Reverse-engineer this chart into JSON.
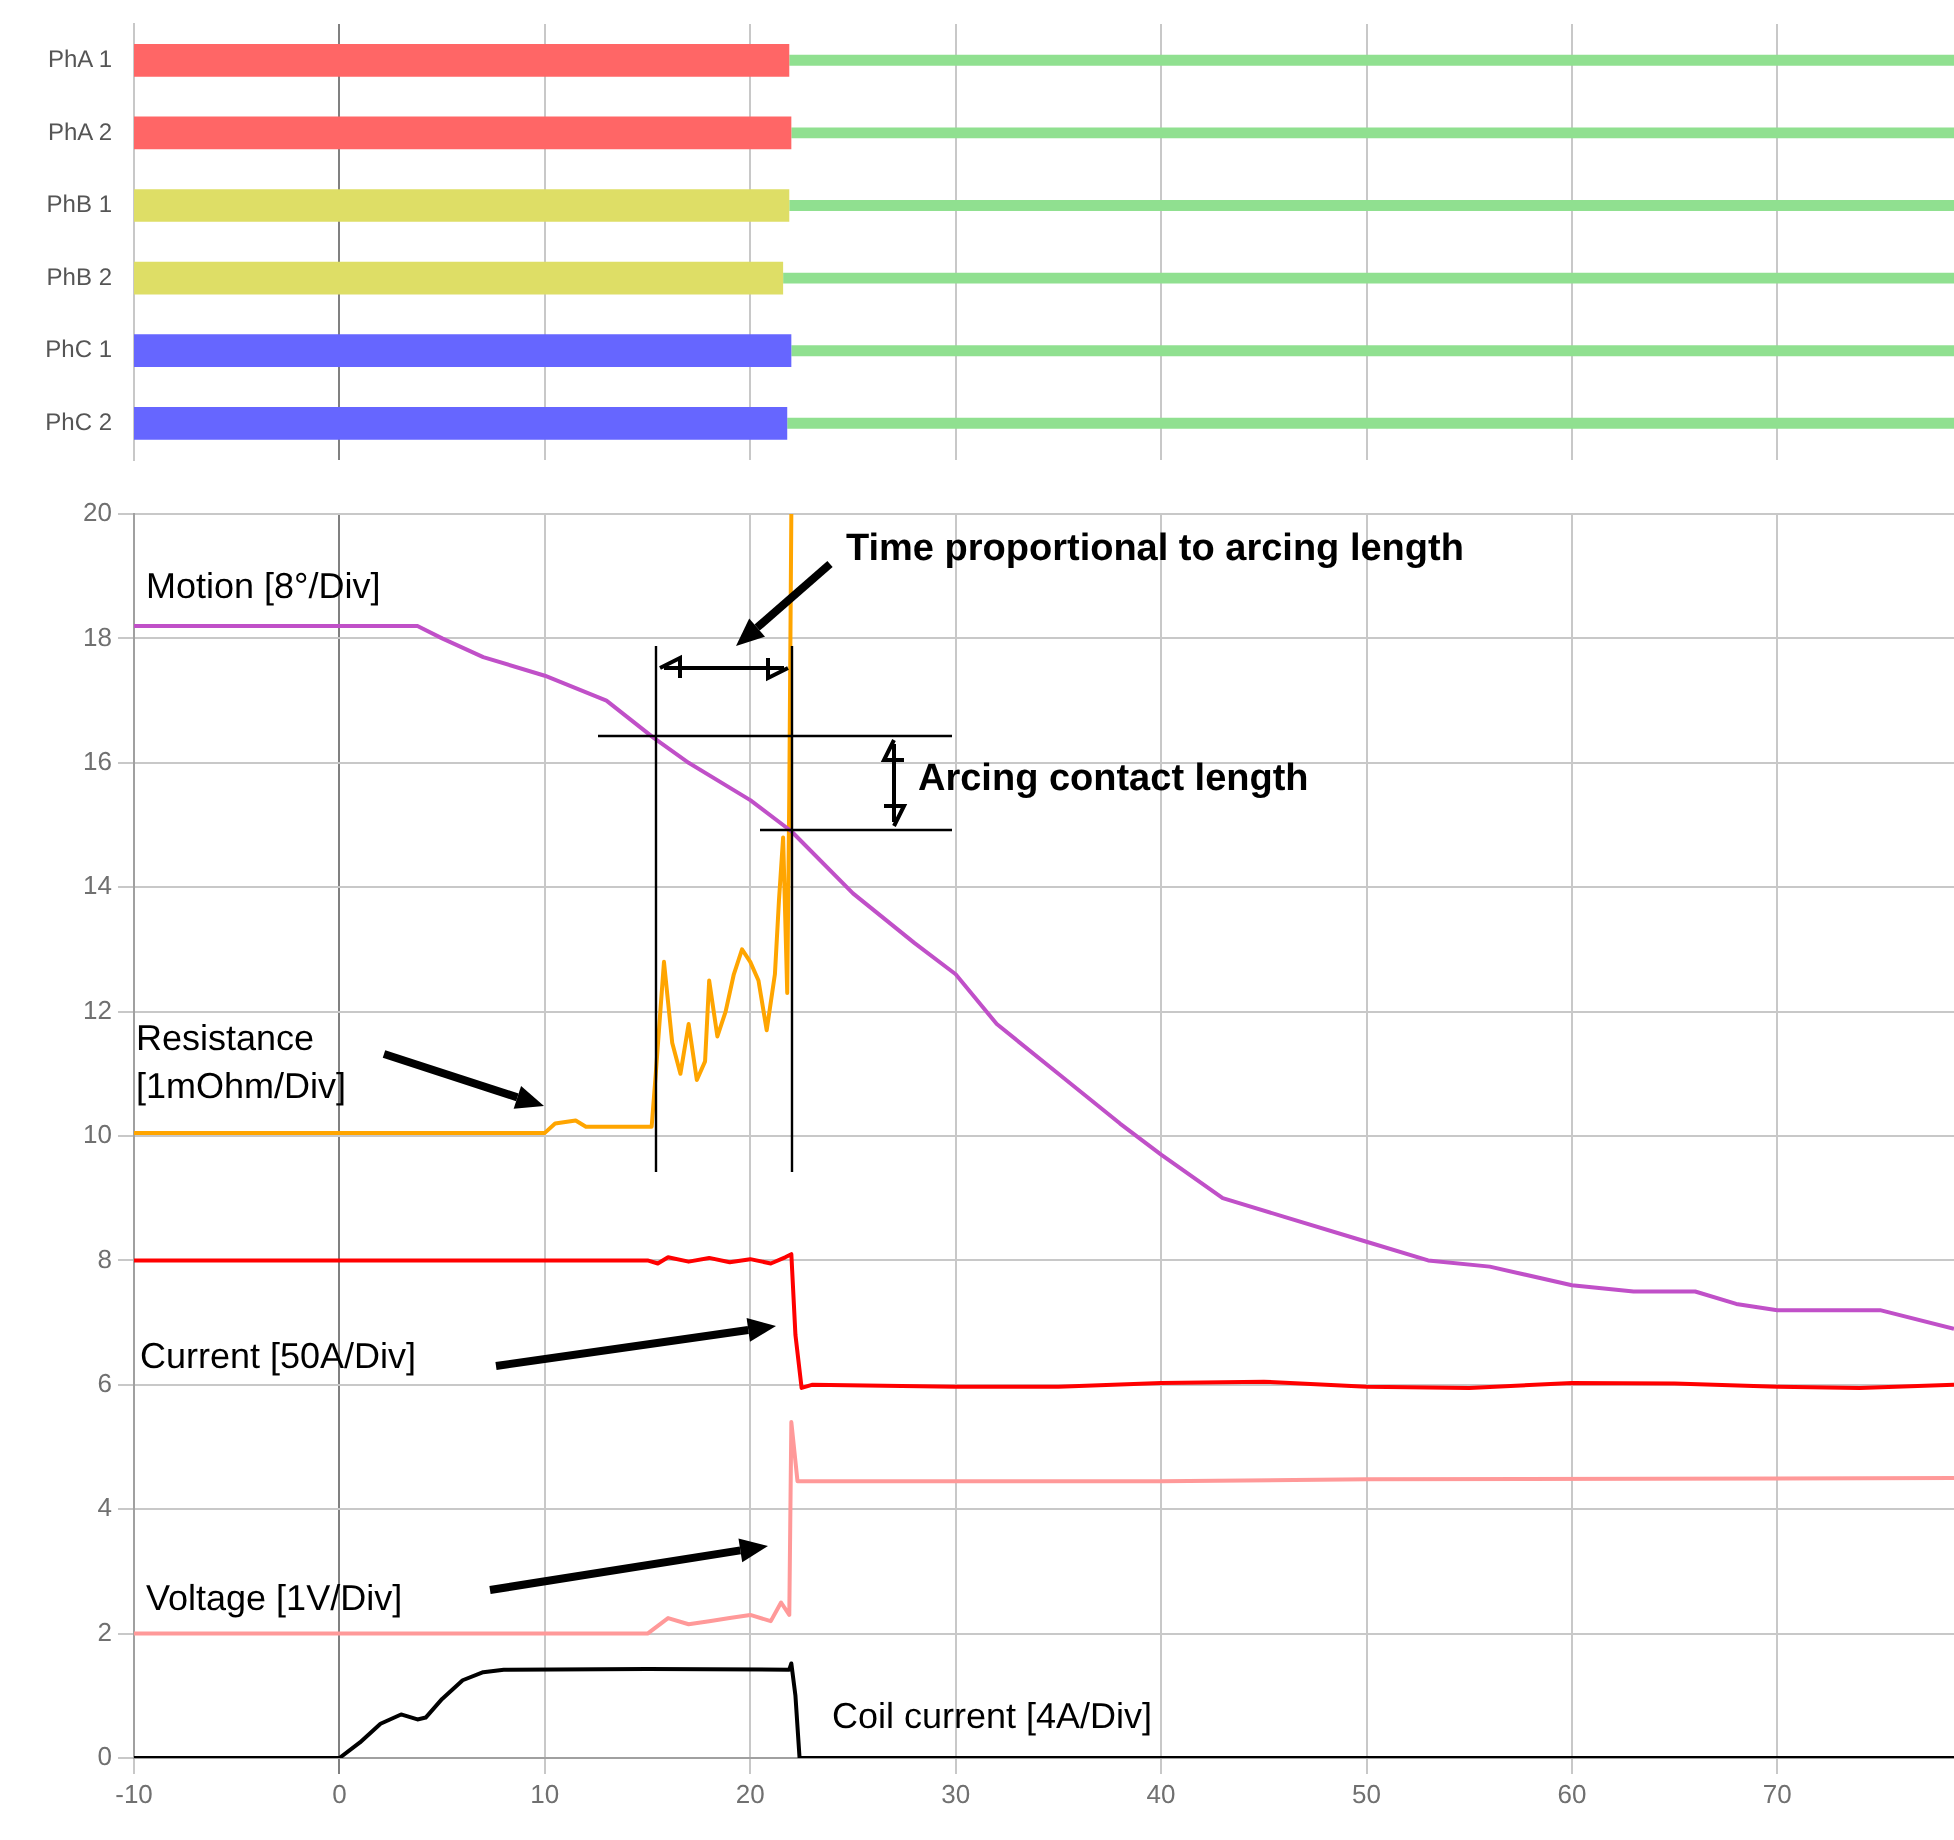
{
  "chart_data": [
    {
      "type": "bar",
      "orientation": "horizontal",
      "categories": [
        "PhA 1",
        "PhA 2",
        "PhB 1",
        "PhB 2",
        "PhC 1",
        "PhC 2"
      ],
      "series": [
        {
          "colors": [
            "#ff6666",
            "#ff6666",
            "#dede66",
            "#dede66",
            "#6666ff",
            "#6666ff"
          ],
          "base": [
            -10,
            -10,
            -10,
            -10,
            -10,
            -10
          ],
          "values": [
            31.9,
            32.0,
            31.9,
            31.6,
            32.0,
            31.8
          ]
        },
        {
          "color": "#90e090",
          "base": [
            21.9,
            22.0,
            21.9,
            21.6,
            22.0,
            21.8
          ],
          "values": [
            56.7,
            56.6,
            56.7,
            57.0,
            56.6,
            56.8
          ]
        }
      ],
      "xlim": [
        -10,
        78.6
      ],
      "xticks": [
        -10,
        0,
        10,
        20,
        30,
        40,
        50,
        60,
        70
      ],
      "grid": "x",
      "tick_labels": "y"
    },
    {
      "type": "line",
      "marker": "none",
      "grid": true,
      "xlim": [
        -10,
        78.6
      ],
      "xticks": [
        -10,
        0,
        10,
        20,
        30,
        40,
        50,
        60,
        70
      ],
      "ylim": [
        0,
        20
      ],
      "yticks": [
        0,
        2,
        4,
        6,
        8,
        10,
        12,
        14,
        16,
        18,
        20
      ],
      "series": [
        {
          "color": "#c050c8",
          "x": [
            -10,
            0,
            3.8,
            5,
            7,
            10,
            13,
            15.3,
            17,
            20,
            22,
            25,
            28,
            30,
            32,
            35,
            38,
            40,
            43,
            46,
            50,
            53,
            56,
            60,
            63,
            66,
            68,
            70,
            73,
            75,
            78.6
          ],
          "values": [
            18.2,
            18.2,
            18.2,
            18.0,
            17.7,
            17.4,
            17.0,
            16.4,
            16.0,
            15.4,
            14.9,
            13.9,
            13.1,
            12.6,
            11.8,
            11.0,
            10.2,
            9.7,
            9.0,
            8.7,
            8.3,
            8.0,
            7.9,
            7.6,
            7.5,
            7.5,
            7.3,
            7.2,
            7.2,
            7.2,
            6.9
          ]
        },
        {
          "color": "#ffa500",
          "x": [
            -10,
            10,
            10.5,
            11.5,
            12,
            15.2,
            15.4,
            15.8,
            16.2,
            16.6,
            17,
            17.4,
            17.8,
            18,
            18.4,
            18.8,
            19.2,
            19.6,
            20,
            20.4,
            20.8,
            21.2,
            21.4,
            21.6,
            21.8,
            21.9,
            22
          ],
          "values": [
            10.05,
            10.05,
            10.2,
            10.25,
            10.15,
            10.15,
            11.0,
            12.8,
            11.5,
            11.0,
            11.8,
            10.9,
            11.2,
            12.5,
            11.6,
            12.0,
            12.6,
            13.0,
            12.8,
            12.5,
            11.7,
            12.6,
            13.8,
            14.8,
            12.3,
            15.5,
            20
          ]
        },
        {
          "color": "#ff0000",
          "x": [
            -10,
            15,
            15.5,
            16,
            17,
            18,
            19,
            20,
            21,
            21.7,
            22,
            22.2,
            22.5,
            23,
            30,
            35,
            40,
            45,
            50,
            55,
            60,
            65,
            70,
            74,
            78.6
          ],
          "values": [
            8,
            8,
            7.95,
            8.05,
            7.98,
            8.04,
            7.97,
            8.02,
            7.95,
            8.05,
            8.1,
            6.8,
            5.95,
            6.0,
            5.97,
            5.97,
            6.03,
            6.05,
            5.97,
            5.95,
            6.03,
            6.02,
            5.97,
            5.95,
            6.0
          ]
        },
        {
          "color": "#ff9999",
          "x": [
            -10,
            15,
            16,
            17,
            18,
            19,
            20,
            21,
            21.5,
            21.9,
            22,
            22.3,
            30,
            40,
            50,
            78.6
          ],
          "values": [
            2,
            2,
            2.25,
            2.15,
            2.2,
            2.25,
            2.3,
            2.2,
            2.5,
            2.3,
            5.4,
            4.45,
            4.45,
            4.45,
            4.48,
            4.5
          ]
        },
        {
          "color": "#000000",
          "x": [
            -10,
            0,
            1,
            2,
            3,
            3.8,
            4.2,
            5,
            6,
            7,
            8,
            15,
            21.9,
            22,
            22.2,
            22.4,
            78.6
          ],
          "values": [
            0,
            0,
            0.25,
            0.55,
            0.7,
            0.62,
            0.65,
            0.95,
            1.25,
            1.38,
            1.42,
            1.43,
            1.42,
            1.52,
            1.0,
            0,
            0
          ]
        }
      ],
      "annotations": [
        "Motion [8°/Div]",
        "Resistance [1mOhm/Div]",
        "Current [50A/Div]",
        "Voltage [1V/Div]",
        "Coil current [4A/Div]",
        "Time proportional to arcing length",
        "Arcing contact length"
      ]
    }
  ]
}
